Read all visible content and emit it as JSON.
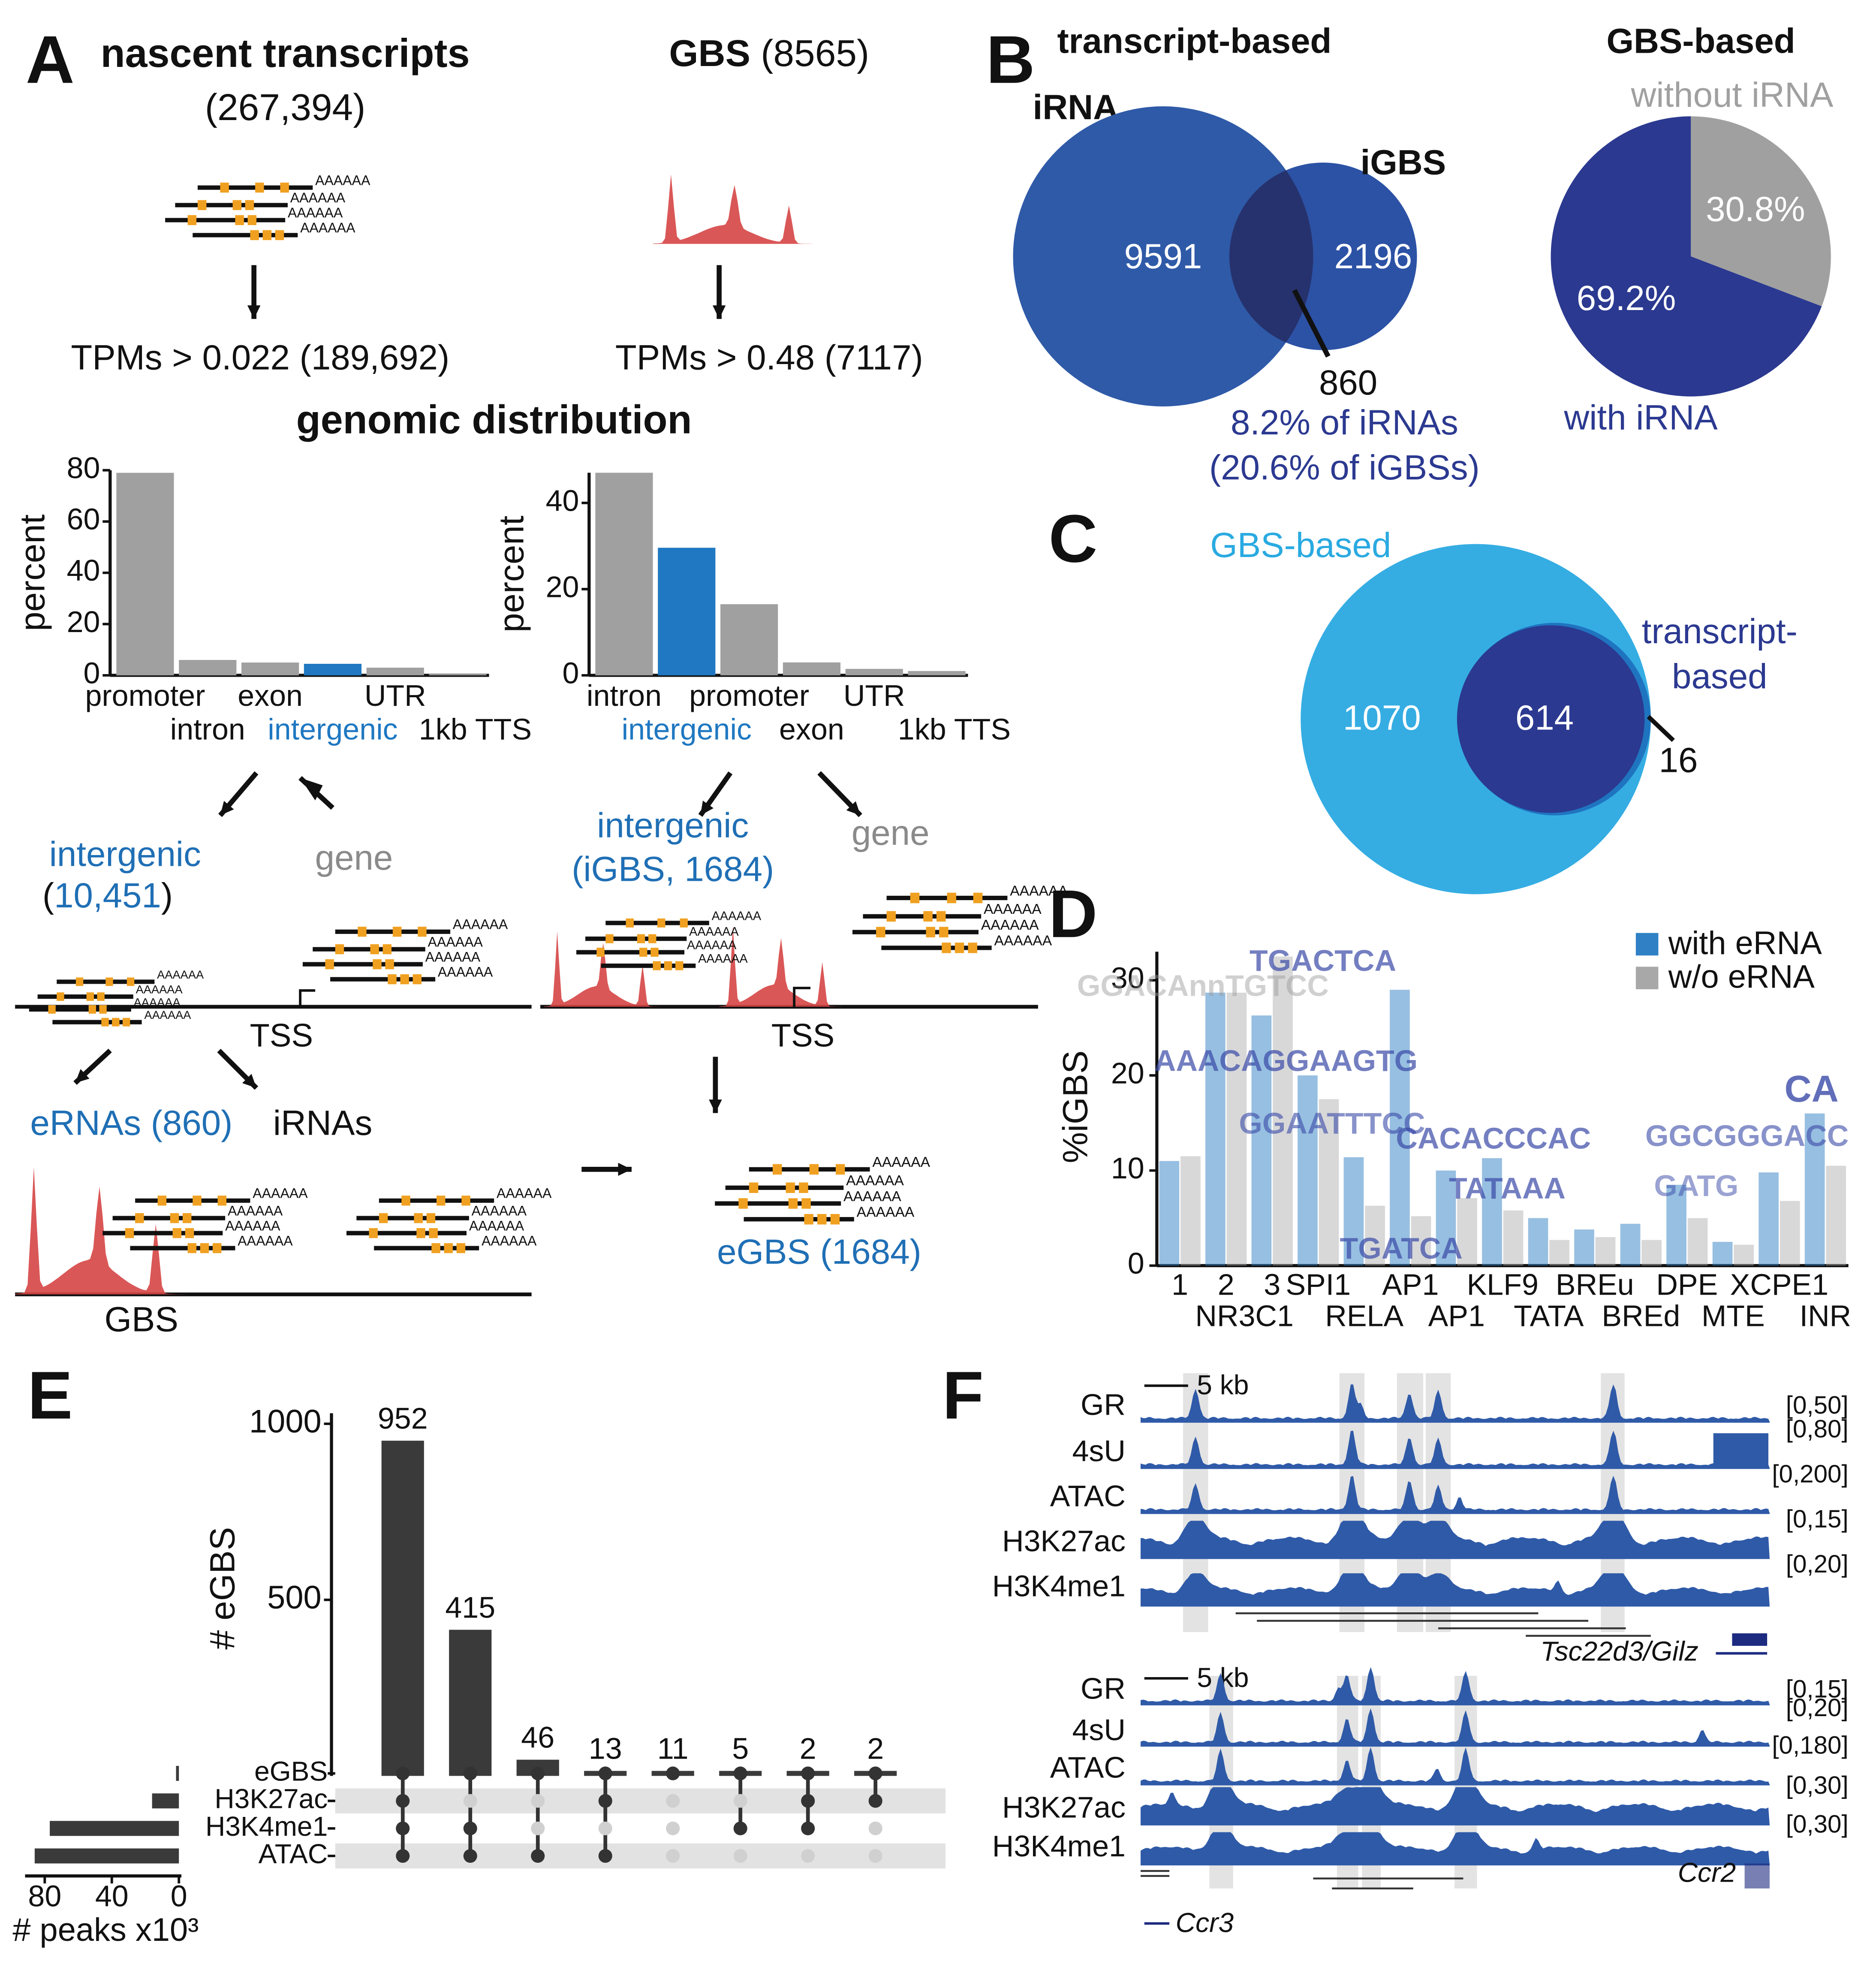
{
  "panel_labels": [
    "A",
    "B",
    "C",
    "D",
    "E",
    "F"
  ],
  "panel_a": {
    "left_title": "nascent transcripts",
    "left_count": "(267,394)",
    "right_title": "GBS",
    "right_count": "(8565)",
    "left_filter": "TPMs > 0.022 (189,692)",
    "right_filter": "TPMs > 0.48 (7117)",
    "distribution_title": "genomic distribution",
    "poly_a": "AAAAAA",
    "left_intergenic": "intergenic",
    "left_intergenic_count": [
      "(",
      "10,451",
      ")"
    ],
    "left_gene": "gene",
    "right_intergenic": "intergenic",
    "right_intergenic_count": "(iGBS, 1684)",
    "right_gene": "gene",
    "tss": "TSS",
    "ernas": "eRNAs (860)",
    "irnas": "iRNAs",
    "gbs": "GBS",
    "egbs": "eGBS (1684)"
  },
  "panel_b": {
    "left_title": "transcript-based",
    "right_title": "GBS-based",
    "a_label": "iRNA",
    "b_label": "iGBS",
    "a_only": 9591,
    "b_only": 2196,
    "overlap": 860,
    "note1": "8.2% of iRNAs",
    "note2": "(20.6% of iGBSs)"
  },
  "panel_c": {
    "a_label": "GBS-based",
    "b_label": [
      "transcript-",
      "based"
    ],
    "a_only": 1070,
    "overlap": 614,
    "b_only": 16
  },
  "panel_f": {
    "region1": {
      "scale": "5 kb",
      "gene": "Tsc22d3/Gilz",
      "tracks": [
        {
          "name": "GR",
          "range": "[0,50]"
        },
        {
          "name": "4sU",
          "range": "[0,80]"
        },
        {
          "name": "ATAC",
          "range": "[0,200]"
        },
        {
          "name": "H3K27ac",
          "range": "[0,15]"
        },
        {
          "name": "H3K4me1",
          "range": "[0,20]"
        }
      ]
    },
    "region2": {
      "scale": "5 kb",
      "genes": [
        "Ccr3",
        "Ccr2"
      ],
      "tracks": [
        {
          "name": "GR",
          "range": "[0,15]"
        },
        {
          "name": "4sU",
          "range": "[0,20]"
        },
        {
          "name": "ATAC",
          "range": "[0,180]"
        },
        {
          "name": "H3K27ac",
          "range": "[0,30]"
        },
        {
          "name": "H3K4me1",
          "range": "[0,30]"
        }
      ]
    }
  },
  "chart_data": [
    {
      "type": "bar",
      "ylabel": "percent",
      "categories": [
        "promoter",
        "intron",
        "exon",
        "intergenic",
        "UTR",
        "1kb TTS"
      ],
      "values": [
        79,
        6,
        5,
        4.5,
        3,
        0.5
      ],
      "colors": [
        "#a0a0a0",
        "#a0a0a0",
        "#a0a0a0",
        "#1f78c1",
        "#a0a0a0",
        "#a0a0a0"
      ],
      "ylim": [
        0,
        80
      ],
      "yticks": [
        0,
        20,
        40,
        60,
        80
      ]
    },
    {
      "type": "bar",
      "ylabel": "percent",
      "categories": [
        "intron",
        "intergenic",
        "promoter",
        "exon",
        "UTR",
        "1kb TTS"
      ],
      "values": [
        47,
        29.6,
        16.5,
        3,
        1.5,
        1
      ],
      "colors": [
        "#a0a0a0",
        "#1f78c1",
        "#a0a0a0",
        "#a0a0a0",
        "#a0a0a0",
        "#a0a0a0"
      ],
      "ylim": [
        0,
        47
      ],
      "yticks": [
        0,
        20,
        40
      ]
    },
    {
      "type": "pie",
      "labels": [
        "with iRNA",
        "without iRNA"
      ],
      "values": [
        69.2,
        30.8
      ],
      "value_labels": [
        "69.2%",
        "30.8%"
      ],
      "colors": [
        "#2b3990",
        "#a0a0a0"
      ]
    },
    {
      "type": "grouped_bar",
      "ylabel": "%iGBS",
      "categories": [
        "1",
        "2",
        "3",
        "SPI1",
        "RELA",
        "AP1",
        "AP1",
        "KLF9",
        "TATA",
        "BREu",
        "BREd",
        "DPE",
        "MTE",
        "XCPE1",
        "INR"
      ],
      "group_label": "NR3C1",
      "series": [
        {
          "name": "with eRNA",
          "color": "#2f80c4",
          "values": [
            11,
            28.7,
            26.3,
            20,
            11.4,
            29,
            10,
            11.3,
            5,
            3.8,
            4.4,
            8.5,
            2.5,
            9.8,
            16
          ]
        },
        {
          "name": "w/o eRNA",
          "color": "#a8a8a8",
          "values": [
            11.5,
            28.7,
            32.5,
            17.5,
            6.3,
            5.2,
            7.1,
            5.8,
            2.7,
            3,
            2.7,
            5,
            2.2,
            6.8,
            10.5
          ]
        }
      ],
      "motifs": [
        "GGACAnnTGTCC",
        "TGACTCA",
        "AAACAGGAAGTG",
        "GGAATTTCC",
        "TGATCA",
        "CACACCCAC",
        "TATAAA",
        "GATG",
        "GGCGGGACC",
        "CA"
      ],
      "ylim": [
        0,
        33
      ],
      "yticks": [
        0,
        10,
        20,
        30
      ],
      "legend": "top-right"
    },
    {
      "type": "upset",
      "ylabel": "# eGBS",
      "values": [
        952,
        415,
        46,
        13,
        11,
        5,
        2,
        2
      ],
      "set_names": [
        "eGBS",
        "H3K27ac",
        "H3K4me1",
        "ATAC"
      ],
      "membership": [
        [
          true,
          true,
          true,
          true
        ],
        [
          true,
          false,
          true,
          true
        ],
        [
          true,
          false,
          false,
          true
        ],
        [
          true,
          true,
          false,
          true
        ],
        [
          true,
          false,
          false,
          false
        ],
        [
          true,
          false,
          true,
          false
        ],
        [
          true,
          true,
          true,
          false
        ],
        [
          true,
          true,
          false,
          false
        ]
      ],
      "ylim": [
        0,
        1030
      ],
      "yticks": [
        500,
        1000
      ],
      "set_sizes": [
        1.7,
        16,
        77,
        86
      ],
      "set_xlim": [
        0,
        88
      ],
      "set_xticks": [
        80,
        40,
        0
      ],
      "set_xlabel": "# peaks x10³",
      "color": "#3a3a3a"
    }
  ]
}
